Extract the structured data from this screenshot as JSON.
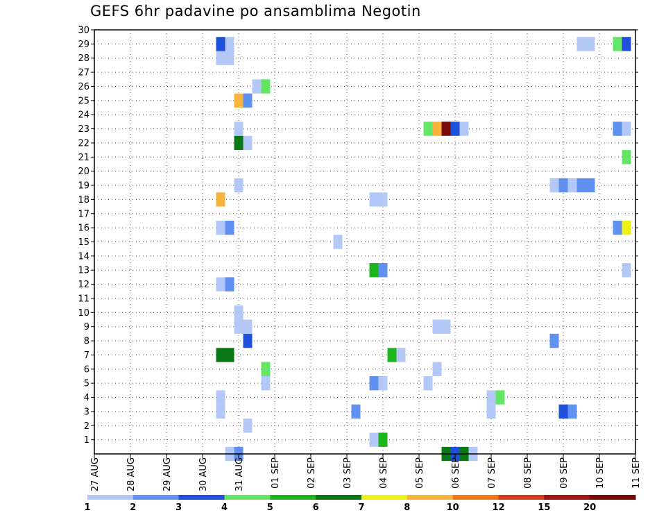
{
  "chart_data": {
    "type": "heatmap",
    "title": "GEFS 6hr padavine po ansamblima Negotin",
    "xlabel": "",
    "ylabel": "",
    "x_range_days": [
      0,
      15
    ],
    "x_ticks": [
      {
        "day": 0,
        "label": "27 AUG"
      },
      {
        "day": 1,
        "label": "28 AUG"
      },
      {
        "day": 2,
        "label": "29 AUG"
      },
      {
        "day": 3,
        "label": "30 AUG"
      },
      {
        "day": 4,
        "label": "31 AUG"
      },
      {
        "day": 5,
        "label": "01 SEP"
      },
      {
        "day": 6,
        "label": "02 SEP"
      },
      {
        "day": 7,
        "label": "03 SEP"
      },
      {
        "day": 8,
        "label": "04 SEP"
      },
      {
        "day": 9,
        "label": "05 SEP"
      },
      {
        "day": 10,
        "label": "06 SEP"
      },
      {
        "day": 11,
        "label": "07 SEP"
      },
      {
        "day": 12,
        "label": "08 SEP"
      },
      {
        "day": 13,
        "label": "09 SEP"
      },
      {
        "day": 14,
        "label": "10 SEP"
      },
      {
        "day": 15,
        "label": "11 SEP"
      }
    ],
    "ylim": [
      0,
      30
    ],
    "y_ticks": [
      "1",
      "2",
      "3",
      "4",
      "5",
      "6",
      "7",
      "8",
      "9",
      "10",
      "11",
      "12",
      "13",
      "14",
      "15",
      "16",
      "17",
      "18",
      "19",
      "20",
      "21",
      "22",
      "23",
      "24",
      "25",
      "26",
      "27",
      "28",
      "29",
      "30"
    ],
    "grid": true,
    "colorbar": {
      "colors": [
        "#b4c8f8",
        "#6090f0",
        "#1e50dc",
        "#64e664",
        "#1eb41e",
        "#0a7814",
        "#f0f014",
        "#fab43c",
        "#f07814",
        "#dc3c1e",
        "#a01414",
        "#780a0a"
      ],
      "labels": [
        "1",
        "2",
        "3",
        "4",
        "5",
        "6",
        "7",
        "8",
        "10",
        "12",
        "15",
        "20"
      ]
    },
    "cells": [
      {
        "day": 3.75,
        "member": 0,
        "level": 1
      },
      {
        "day": 4.0,
        "member": 0,
        "level": 2
      },
      {
        "day": 9.75,
        "member": 0,
        "level": 6
      },
      {
        "day": 10.0,
        "member": 0,
        "level": 3
      },
      {
        "day": 10.25,
        "member": 0,
        "level": 6
      },
      {
        "day": 10.5,
        "member": 0,
        "level": 1
      },
      {
        "day": 7.75,
        "member": 1,
        "level": 1
      },
      {
        "day": 8.0,
        "member": 1,
        "level": 5
      },
      {
        "day": 4.25,
        "member": 2,
        "level": 1
      },
      {
        "day": 3.5,
        "member": 3,
        "level": 1
      },
      {
        "day": 7.25,
        "member": 3,
        "level": 2
      },
      {
        "day": 11.0,
        "member": 3,
        "level": 1
      },
      {
        "day": 13.0,
        "member": 3,
        "level": 3
      },
      {
        "day": 13.25,
        "member": 3,
        "level": 2
      },
      {
        "day": 3.5,
        "member": 4,
        "level": 1
      },
      {
        "day": 11.0,
        "member": 4,
        "level": 1
      },
      {
        "day": 11.25,
        "member": 4,
        "level": 4
      },
      {
        "day": 4.75,
        "member": 5,
        "level": 1
      },
      {
        "day": 7.75,
        "member": 5,
        "level": 2
      },
      {
        "day": 8.0,
        "member": 5,
        "level": 1
      },
      {
        "day": 9.25,
        "member": 5,
        "level": 1
      },
      {
        "day": 4.75,
        "member": 6,
        "level": 4
      },
      {
        "day": 9.5,
        "member": 6,
        "level": 1
      },
      {
        "day": 3.5,
        "member": 7,
        "level": 6
      },
      {
        "day": 3.75,
        "member": 7,
        "level": 6
      },
      {
        "day": 8.25,
        "member": 7,
        "level": 5
      },
      {
        "day": 8.5,
        "member": 7,
        "level": 1
      },
      {
        "day": 4.25,
        "member": 8,
        "level": 3
      },
      {
        "day": 12.75,
        "member": 8,
        "level": 2
      },
      {
        "day": 4.0,
        "member": 9,
        "level": 1
      },
      {
        "day": 4.25,
        "member": 9,
        "level": 1
      },
      {
        "day": 9.5,
        "member": 9,
        "level": 1
      },
      {
        "day": 9.75,
        "member": 9,
        "level": 1
      },
      {
        "day": 4.0,
        "member": 10,
        "level": 1
      },
      {
        "day": 3.5,
        "member": 12,
        "level": 1
      },
      {
        "day": 3.75,
        "member": 12,
        "level": 2
      },
      {
        "day": 7.75,
        "member": 13,
        "level": 5
      },
      {
        "day": 8.0,
        "member": 13,
        "level": 2
      },
      {
        "day": 14.75,
        "member": 13,
        "level": 1
      },
      {
        "day": 6.75,
        "member": 15,
        "level": 1
      },
      {
        "day": 3.5,
        "member": 16,
        "level": 1
      },
      {
        "day": 3.75,
        "member": 16,
        "level": 2
      },
      {
        "day": 14.5,
        "member": 16,
        "level": 2
      },
      {
        "day": 14.75,
        "member": 16,
        "level": 7
      },
      {
        "day": 3.5,
        "member": 18,
        "level": 8
      },
      {
        "day": 7.75,
        "member": 18,
        "level": 1
      },
      {
        "day": 8.0,
        "member": 18,
        "level": 1
      },
      {
        "day": 4.0,
        "member": 19,
        "level": 1
      },
      {
        "day": 12.75,
        "member": 19,
        "level": 1
      },
      {
        "day": 13.0,
        "member": 19,
        "level": 2
      },
      {
        "day": 13.25,
        "member": 19,
        "level": 1
      },
      {
        "day": 13.5,
        "member": 19,
        "level": 2
      },
      {
        "day": 13.75,
        "member": 19,
        "level": 2
      },
      {
        "day": 14.75,
        "member": 21,
        "level": 4
      },
      {
        "day": 4.0,
        "member": 22,
        "level": 6
      },
      {
        "day": 4.25,
        "member": 22,
        "level": 1
      },
      {
        "day": 4.0,
        "member": 23,
        "level": 1
      },
      {
        "day": 9.25,
        "member": 23,
        "level": 4
      },
      {
        "day": 9.5,
        "member": 23,
        "level": 8
      },
      {
        "day": 9.75,
        "member": 23,
        "level": 12
      },
      {
        "day": 10.0,
        "member": 23,
        "level": 3
      },
      {
        "day": 10.25,
        "member": 23,
        "level": 1
      },
      {
        "day": 14.5,
        "member": 23,
        "level": 2
      },
      {
        "day": 14.75,
        "member": 23,
        "level": 1
      },
      {
        "day": 4.0,
        "member": 25,
        "level": 8
      },
      {
        "day": 4.25,
        "member": 25,
        "level": 2
      },
      {
        "day": 4.5,
        "member": 26,
        "level": 1
      },
      {
        "day": 4.75,
        "member": 26,
        "level": 4
      },
      {
        "day": 3.5,
        "member": 28,
        "level": 1
      },
      {
        "day": 3.75,
        "member": 28,
        "level": 1
      },
      {
        "day": 3.5,
        "member": 29,
        "level": 3
      },
      {
        "day": 3.75,
        "member": 29,
        "level": 1
      },
      {
        "day": 13.5,
        "member": 29,
        "level": 1
      },
      {
        "day": 13.75,
        "member": 29,
        "level": 1
      },
      {
        "day": 14.5,
        "member": 29,
        "level": 4
      },
      {
        "day": 14.75,
        "member": 29,
        "level": 3
      }
    ]
  }
}
